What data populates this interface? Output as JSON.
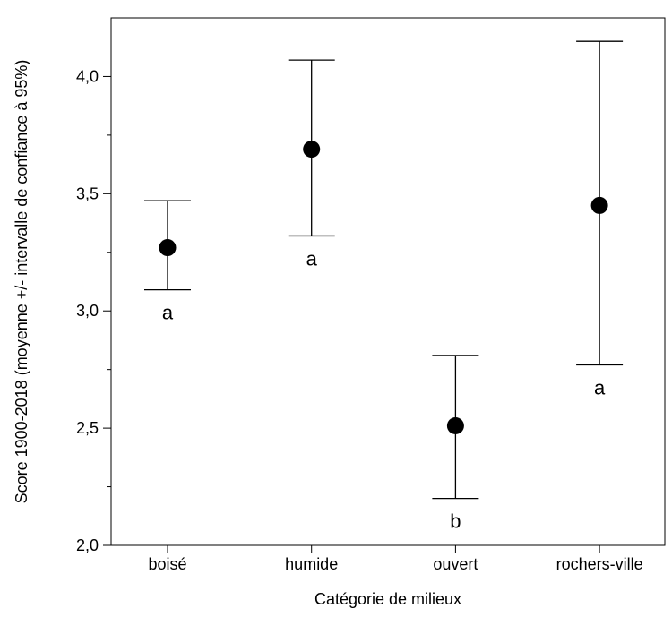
{
  "chart_data": {
    "type": "scatter",
    "title": "",
    "xlabel": "Catégorie de milieux",
    "ylabel": "Score 1900-2018 (moyenne +/- intervalle de confiance à 95%)",
    "categories": [
      "boisé",
      "humide",
      "ouvert",
      "rochers-ville"
    ],
    "mean": [
      3.27,
      3.69,
      2.51,
      3.45
    ],
    "ci_lower": [
      3.09,
      3.32,
      2.2,
      2.77
    ],
    "ci_upper": [
      3.47,
      4.07,
      2.81,
      4.15
    ],
    "significance_letters": [
      "a",
      "a",
      "b",
      "a"
    ],
    "ylim": [
      2.0,
      4.25
    ],
    "yticks": [
      2.0,
      2.5,
      3.0,
      3.5,
      4.0
    ],
    "ytick_labels": [
      "2,0",
      "2,5",
      "3,0",
      "3,5",
      "4,0"
    ],
    "y_minor_ticks": [
      2.25,
      2.75,
      3.25,
      3.75
    ],
    "grid": false,
    "legend": "none",
    "colors": {
      "marker": "#000000",
      "axis": "#000000"
    }
  }
}
